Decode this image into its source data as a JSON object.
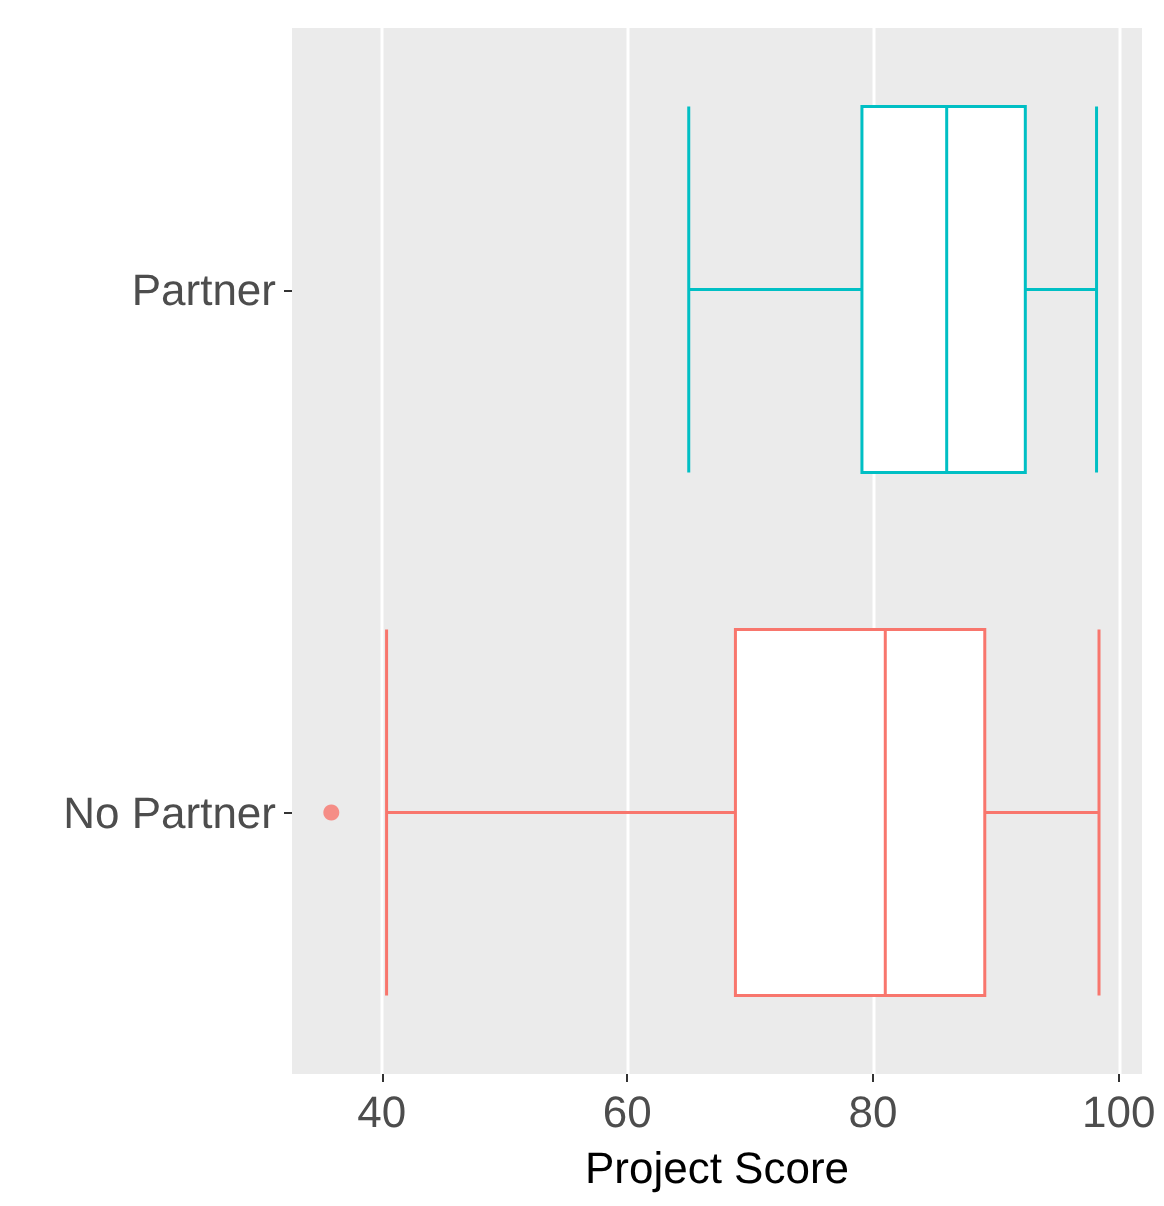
{
  "chart_data": {
    "type": "box",
    "orientation": "horizontal",
    "categories": [
      "Partner",
      "No Partner"
    ],
    "boxes": [
      {
        "low": 65.0,
        "q1": 79.1,
        "median": 86.0,
        "q3": 92.4,
        "high": 98.2
      },
      {
        "low": 40.4,
        "q1": 68.8,
        "median": 81.0,
        "q3": 89.1,
        "high": 98.4,
        "outliers": [
          35.9
        ]
      }
    ],
    "colors": [
      "#00bfc4",
      "#f8766d"
    ],
    "xlabel": "Project Score",
    "xlim": [
      32.7,
      101.9
    ],
    "xticks": [
      40,
      60,
      80,
      100
    ],
    "grid": "x"
  }
}
